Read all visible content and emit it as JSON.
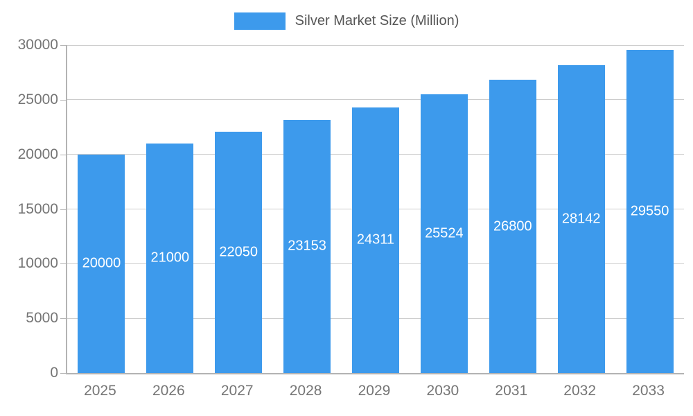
{
  "legend": {
    "label": "Silver Market Size (Million)"
  },
  "chart_data": {
    "type": "bar",
    "title": "Silver Market Size (Million)",
    "categories": [
      "2025",
      "2026",
      "2027",
      "2028",
      "2029",
      "2030",
      "2031",
      "2032",
      "2033"
    ],
    "values": [
      20000,
      21000,
      22050,
      23153,
      24311,
      25524,
      26800,
      28142,
      29550
    ],
    "xlabel": "",
    "ylabel": "",
    "ylim": [
      0,
      30000
    ],
    "yticks": [
      0,
      5000,
      10000,
      15000,
      20000,
      25000,
      30000
    ],
    "grid": true,
    "legend_position": "top",
    "bar_color": "#3d9aec",
    "value_label_color": "#ffffff",
    "axis_label_color": "#757575",
    "grid_color": "#cccccc"
  }
}
